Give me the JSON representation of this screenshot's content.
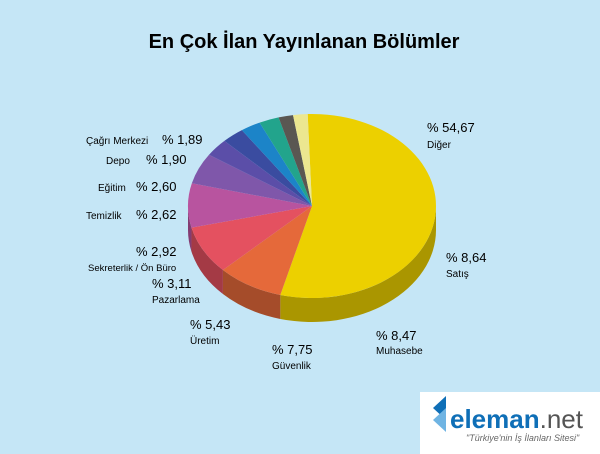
{
  "chart_data": {
    "type": "pie",
    "title": "En Çok İlan Yayınlanan Bölümler",
    "slices": [
      {
        "label": "Diğer",
        "display": "% 54,67",
        "value": 54.67,
        "color": "#ecd000"
      },
      {
        "label": "Satış",
        "display": "% 8,64",
        "value": 8.64,
        "color": "#e5693a"
      },
      {
        "label": "Muhasebe",
        "display": "% 8,47",
        "value": 8.47,
        "color": "#e45160"
      },
      {
        "label": "Güvenlik",
        "display": "% 7,75",
        "value": 7.75,
        "color": "#b8549f"
      },
      {
        "label": "Üretim",
        "display": "% 5,43",
        "value": 5.43,
        "color": "#7f57aa"
      },
      {
        "label": "Pazarlama",
        "display": "% 3,11",
        "value": 3.11,
        "color": "#5b4ea8"
      },
      {
        "label": "Sekreterlik / Ön Büro",
        "display": "% 2,92",
        "value": 2.92,
        "color": "#3a4ca0"
      },
      {
        "label": "Temizlik",
        "display": "% 2,62",
        "value": 2.62,
        "color": "#1c84c8"
      },
      {
        "label": "Eğitim",
        "display": "% 2,60",
        "value": 2.6,
        "color": "#22a48c"
      },
      {
        "label": "Depo",
        "display": "% 1,90",
        "value": 1.9,
        "color": "#5a5752"
      },
      {
        "label": "Çağrı Merkezi",
        "display": "% 1,89",
        "value": 1.89,
        "color": "#ece790"
      },
      {
        "label": "",
        "display": "",
        "value": 0.0,
        "color": "#a78766"
      }
    ]
  },
  "brand": {
    "name_main": "eleman",
    "name_suffix": ".net",
    "tagline": "\"Türkiye'nin İş İlanları Sitesi\"",
    "color_main": "#0f6fb7",
    "color_suffix": "#555555"
  }
}
